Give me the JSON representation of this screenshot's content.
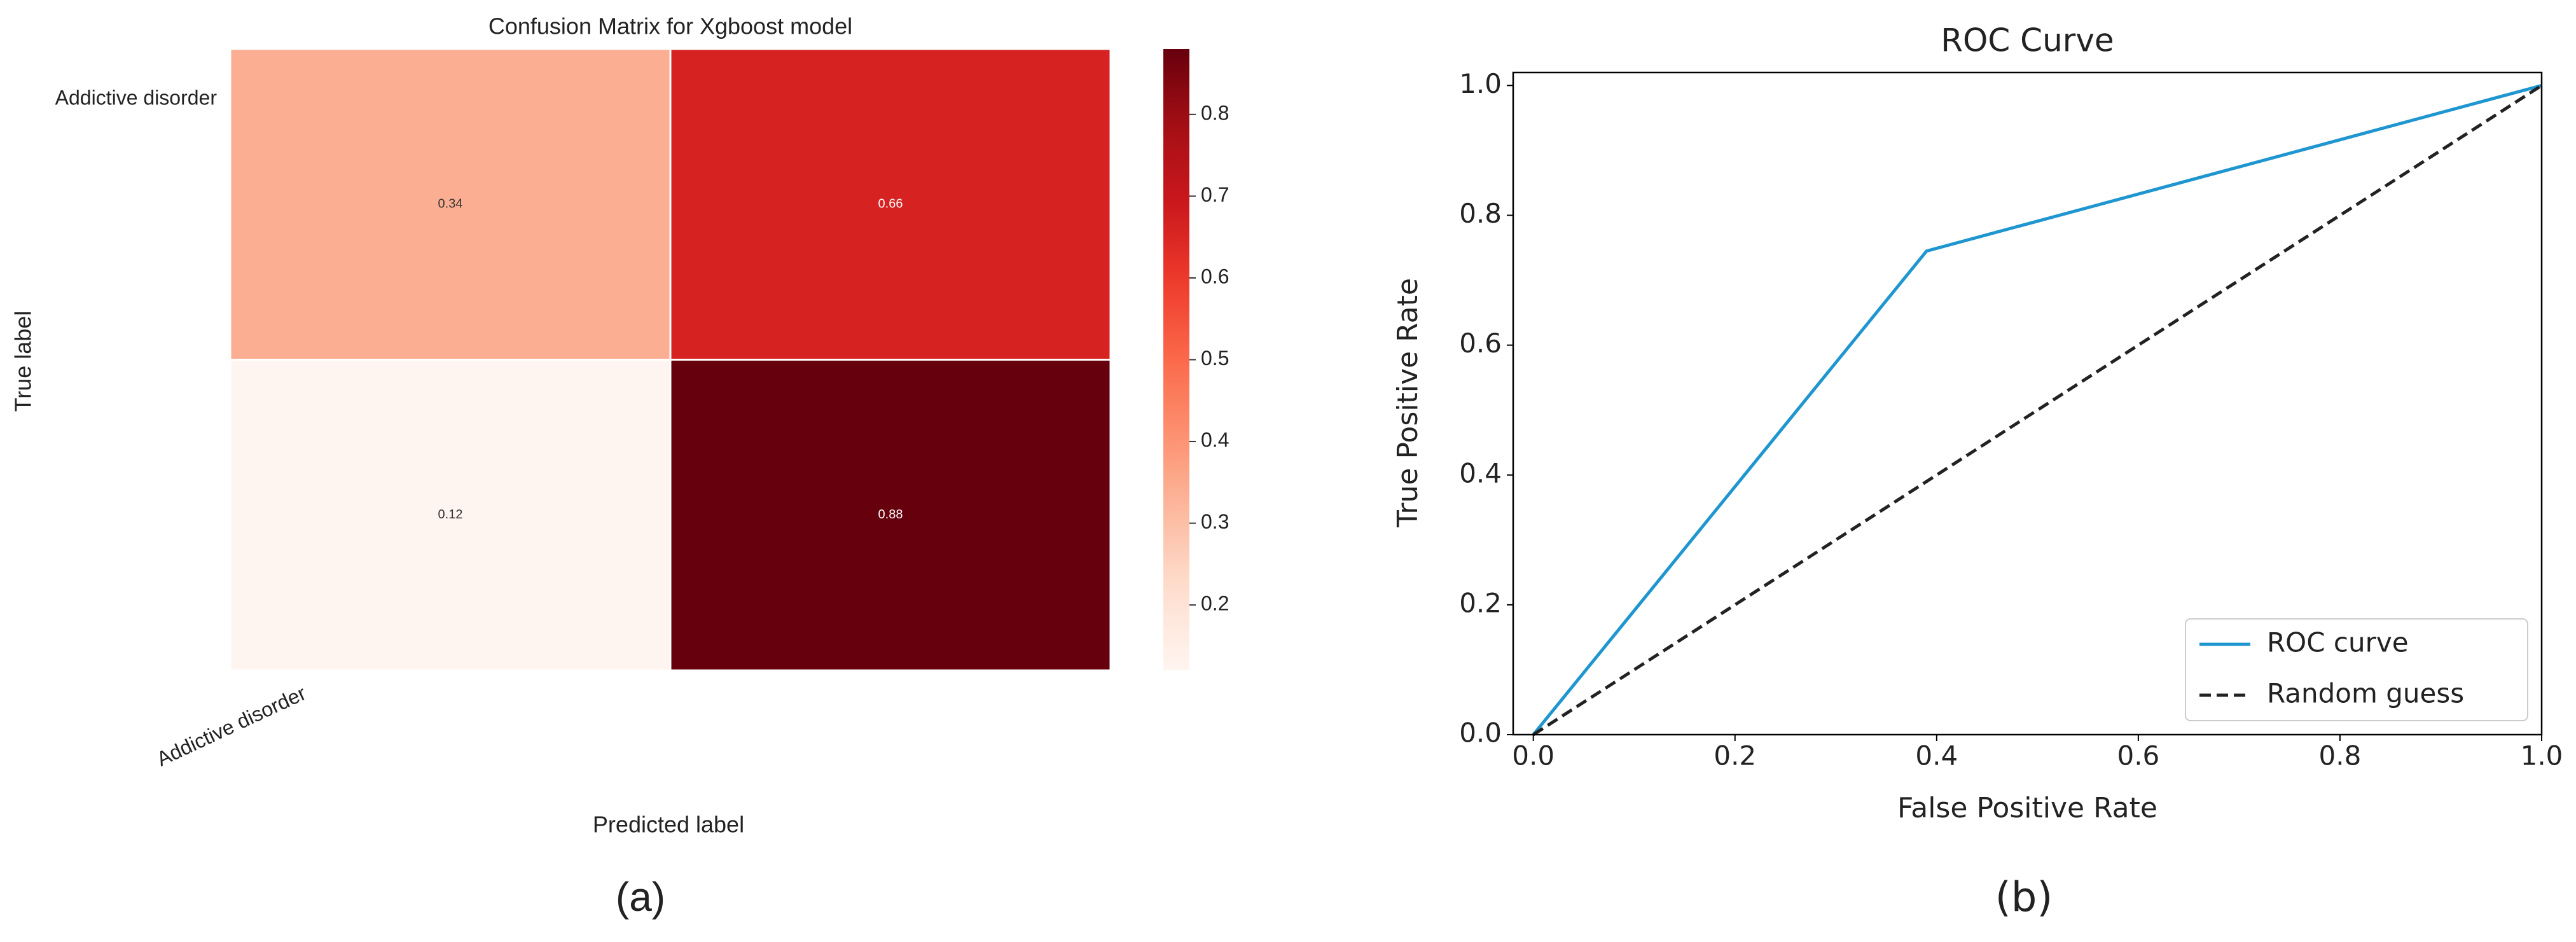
{
  "chart_data": [
    {
      "type": "heatmap",
      "title": "Confusion Matrix for Xgboost model",
      "x_label": "Predicted label",
      "y_label": "True label",
      "x_categories": [
        "Addictive disorder",
        null
      ],
      "y_categories": [
        "Addictive disorder",
        null
      ],
      "values": [
        [
          0.34,
          0.66
        ],
        [
          0.12,
          0.88
        ]
      ],
      "colormap": "Reds",
      "colorbar_lim": [
        0.12,
        0.88
      ],
      "colorbar_ticks": [
        0.2,
        0.3,
        0.4,
        0.5,
        0.6,
        0.7,
        0.8
      ],
      "caption": "(a)"
    },
    {
      "type": "line",
      "title": "ROC Curve",
      "x_label": "False Positive Rate",
      "y_label": "True Positive Rate",
      "series": [
        {
          "name": "ROC curve",
          "color": "#1f96cf",
          "dashed": false,
          "x": [
            0,
            0.39,
            1
          ],
          "values": [
            0,
            0.745,
            1
          ]
        },
        {
          "name": "Random guess",
          "color": "#222222",
          "dashed": true,
          "x": [
            0,
            1
          ],
          "values": [
            0,
            1
          ]
        }
      ],
      "xlim": [
        -0.02,
        1.0
      ],
      "ylim": [
        0,
        1.02
      ],
      "xticks": [
        {
          "value": 0,
          "label": "0.0"
        },
        0.2,
        0.4,
        0.6,
        0.8,
        {
          "value": 1,
          "label": "1.0"
        }
      ],
      "yticks": [
        {
          "value": 0,
          "label": "0.0"
        },
        0.2,
        0.4,
        0.6,
        0.8,
        {
          "value": 1,
          "label": "1.0"
        }
      ],
      "legend": "lower right",
      "grid": false,
      "caption": "(b)"
    }
  ]
}
